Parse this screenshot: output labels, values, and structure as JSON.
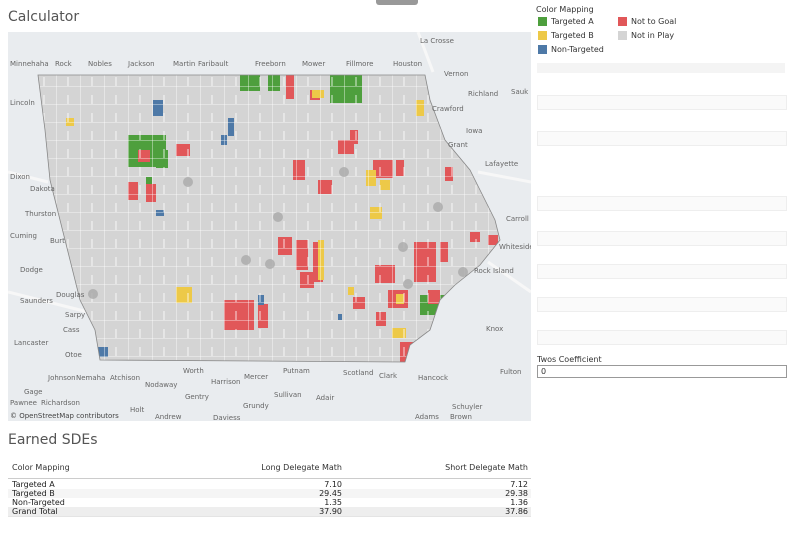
{
  "header": {
    "title": "Calculator"
  },
  "legend": {
    "title": "Color Mapping",
    "items": [
      {
        "label": "Targeted A",
        "color": "#4e9f3d"
      },
      {
        "label": "Not to Goal",
        "color": "#e15759"
      },
      {
        "label": "Targeted B",
        "color": "#edc948"
      },
      {
        "label": "Not in Play",
        "color": "#d4d4d4"
      },
      {
        "label": "Non-Targeted",
        "color": "#4e79a7"
      }
    ]
  },
  "map": {
    "labels": [
      "Minnehaha",
      "Rock",
      "Nobles",
      "Jackson",
      "Martin",
      "Faribault",
      "Freeborn",
      "Mower",
      "Fillmore",
      "Houston",
      "La Crosse",
      "Vernon",
      "Richland",
      "Sauk",
      "Crawford",
      "Iowa",
      "Grant",
      "Lafayette",
      "Lincoln",
      "Dixon",
      "Dakota",
      "Thurston",
      "Cuming",
      "Burt",
      "Dodge",
      "Saunders",
      "Douglas",
      "Sarpy",
      "Cass",
      "Lancaster",
      "Otoe",
      "Johnson",
      "Nemaha",
      "Atchison",
      "Nodaway",
      "Worth",
      "Harrison",
      "Mercer",
      "Putnam",
      "Scotland",
      "Clark",
      "Hancock",
      "Gage",
      "Gentry",
      "Sullivan",
      "Adair",
      "Pawnee",
      "Richardson",
      "Holt",
      "Andrew",
      "Daviess",
      "Grundy",
      "Schuyler",
      "Adams",
      "Brown",
      "Carroll",
      "Whiteside",
      "Rock Island",
      "Knox",
      "Fulton"
    ],
    "attribution": "© OpenStreetMap contributors"
  },
  "parameters": [
    {
      "label": "Twos Coefficient",
      "value": "0"
    }
  ],
  "table": {
    "title": "Earned SDEs",
    "columns": [
      "Color Mapping",
      "Long Delegate Math",
      "Short Delegate Math"
    ],
    "rows": [
      [
        "Targeted A",
        "7.10",
        "7.12"
      ],
      [
        "Targeted B",
        "29.45",
        "29.38"
      ],
      [
        "Non-Targeted",
        "1.35",
        "1.36"
      ],
      [
        "Grand Total",
        "37.90",
        "37.86"
      ]
    ]
  }
}
